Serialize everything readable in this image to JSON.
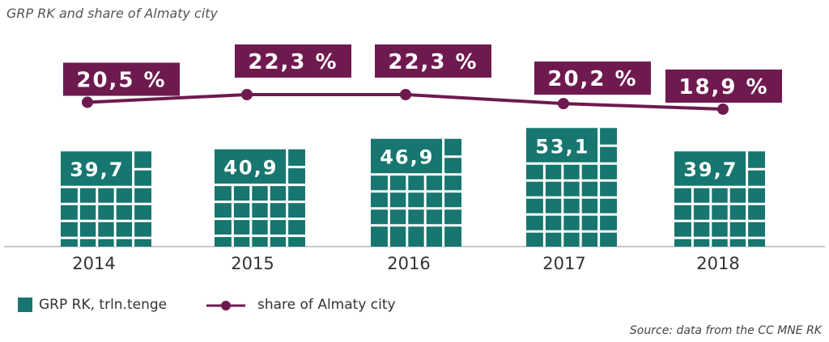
{
  "chart_data": {
    "type": "bar",
    "title": "GRP RK and share of Almaty city",
    "categories": [
      "2014",
      "2015",
      "2016",
      "2017",
      "2018"
    ],
    "series": [
      {
        "name": "GRP RK, trln.tenge",
        "type": "bar",
        "color": "#17766f",
        "values": [
          39.7,
          40.9,
          46.9,
          53.1,
          39.7
        ],
        "data_labels": [
          "39,7",
          "40,9",
          "46,9",
          "53,1",
          "39,7"
        ]
      },
      {
        "name": "share of Almaty city",
        "type": "line",
        "color": "#6e1a4f",
        "values": [
          20.5,
          22.3,
          22.3,
          20.2,
          18.9
        ],
        "data_labels": [
          "20,5 %",
          "22,3 %",
          "22,3 %",
          "20,2 %",
          "18,9 %"
        ]
      }
    ],
    "xlabel": "",
    "ylabel": "",
    "grid": false,
    "legend": "bottom-left",
    "source": "Source: data from the CC MNE RK"
  }
}
